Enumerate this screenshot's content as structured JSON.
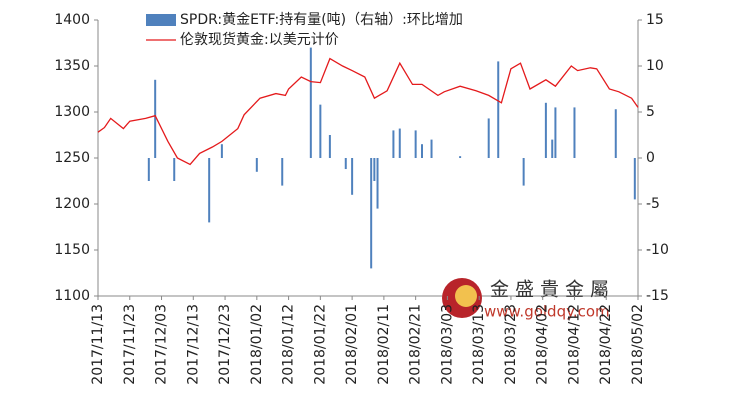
{
  "chart_data": {
    "type": "combo",
    "series": [
      {
        "name": "SPDR:黄金ETF:持有量(吨)（右轴）:环比增加",
        "type": "bar",
        "axis": "y2",
        "color": "#4f81bd",
        "x": [
          "2017/11/29",
          "2017/12/01",
          "2017/12/07",
          "2017/12/18",
          "2017/12/22",
          "2018/01/02",
          "2018/01/10",
          "2018/01/19",
          "2018/01/22",
          "2018/01/25",
          "2018/01/30",
          "2018/02/01",
          "2018/02/07",
          "2018/02/08",
          "2018/02/09",
          "2018/02/14",
          "2018/02/16",
          "2018/02/21",
          "2018/02/23",
          "2018/02/26",
          "2018/03/07",
          "2018/03/16",
          "2018/03/19",
          "2018/03/27",
          "2018/04/03",
          "2018/04/05",
          "2018/04/06",
          "2018/04/12",
          "2018/04/25",
          "2018/05/01"
        ],
        "values": [
          -2.5,
          8.5,
          -2.5,
          -7,
          1.5,
          -1.5,
          -3,
          12,
          5.8,
          2.5,
          -1.2,
          -4,
          -12,
          -2.5,
          -5.5,
          3,
          3.2,
          3,
          1.5,
          2,
          0.2,
          4.3,
          10.5,
          -3,
          6,
          2,
          5.5,
          5.5,
          5.3,
          -4.5
        ]
      },
      {
        "name": "伦敦现货黄金:以美元计价",
        "type": "line",
        "color": "#e41a1c",
        "x": [
          "2017/11/13",
          "2017/11/15",
          "2017/11/17",
          "2017/11/21",
          "2017/11/23",
          "2017/11/28",
          "2017/12/01",
          "2017/12/05",
          "2017/12/08",
          "2017/12/12",
          "2017/12/15",
          "2017/12/19",
          "2017/12/22",
          "2017/12/27",
          "2017/12/29",
          "2018/01/03",
          "2018/01/08",
          "2018/01/11",
          "2018/01/12",
          "2018/01/16",
          "2018/01/19",
          "2018/01/22",
          "2018/01/25",
          "2018/01/29",
          "2018/02/01",
          "2018/02/05",
          "2018/02/08",
          "2018/02/12",
          "2018/02/16",
          "2018/02/20",
          "2018/02/23",
          "2018/02/28",
          "2018/03/02",
          "2018/03/07",
          "2018/03/12",
          "2018/03/16",
          "2018/03/20",
          "2018/03/23",
          "2018/03/26",
          "2018/03/29",
          "2018/04/03",
          "2018/04/06",
          "2018/04/11",
          "2018/04/13",
          "2018/04/17",
          "2018/04/19",
          "2018/04/23",
          "2018/04/26",
          "2018/04/30",
          "2018/05/02"
        ],
        "values": [
          1278,
          1283,
          1293,
          1282,
          1290,
          1293,
          1296,
          1268,
          1250,
          1243,
          1255,
          1262,
          1268,
          1282,
          1297,
          1315,
          1320,
          1318,
          1325,
          1338,
          1333,
          1332,
          1358,
          1350,
          1345,
          1338,
          1315,
          1323,
          1353,
          1330,
          1330,
          1318,
          1322,
          1328,
          1323,
          1318,
          1310,
          1347,
          1353,
          1325,
          1335,
          1328,
          1350,
          1345,
          1348,
          1347,
          1325,
          1322,
          1315,
          1305
        ]
      }
    ],
    "xlim": [
      "2017/11/13",
      "2018/05/02"
    ],
    "xticks": [
      "2017/11/13",
      "2017/11/23",
      "2017/12/03",
      "2017/12/13",
      "2017/12/23",
      "2018/01/02",
      "2018/01/12",
      "2018/01/22",
      "2018/02/01",
      "2018/02/11",
      "2018/02/21",
      "2018/03/03",
      "2018/03/13",
      "2018/03/23",
      "2018/04/02",
      "2018/04/12",
      "2018/04/22",
      "2018/05/02"
    ],
    "ylim": [
      1100,
      1400
    ],
    "yticks": [
      1100,
      1150,
      1200,
      1250,
      1300,
      1350,
      1400
    ],
    "y2lim": [
      -15,
      15
    ],
    "y2ticks": [
      -15,
      -10,
      -5,
      0,
      5,
      10,
      15
    ],
    "grid": false,
    "watermark": {
      "brand": "金盛貴金屬",
      "url": "www.goldqy.com"
    }
  }
}
